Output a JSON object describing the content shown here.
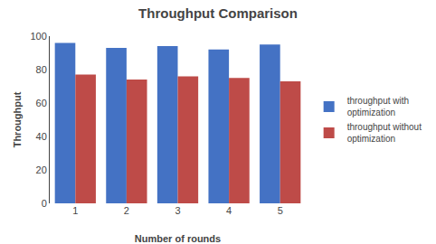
{
  "chart_data": {
    "type": "bar",
    "title": "Throughput Comparison",
    "xlabel": "Number of rounds",
    "ylabel": "Throughput",
    "categories": [
      "1",
      "2",
      "3",
      "4",
      "5"
    ],
    "series": [
      {
        "name": "throughput with\noptimization",
        "color": "#4472C4",
        "values": [
          96,
          93,
          94,
          92,
          95
        ]
      },
      {
        "name": "throughput without\noptimization",
        "color": "#BE4B48",
        "values": [
          77,
          74,
          76,
          75,
          73
        ]
      }
    ],
    "ylim": [
      0,
      100
    ],
    "yticks": [
      0,
      20,
      40,
      60,
      80,
      100
    ],
    "grid": false,
    "legend": "right"
  }
}
